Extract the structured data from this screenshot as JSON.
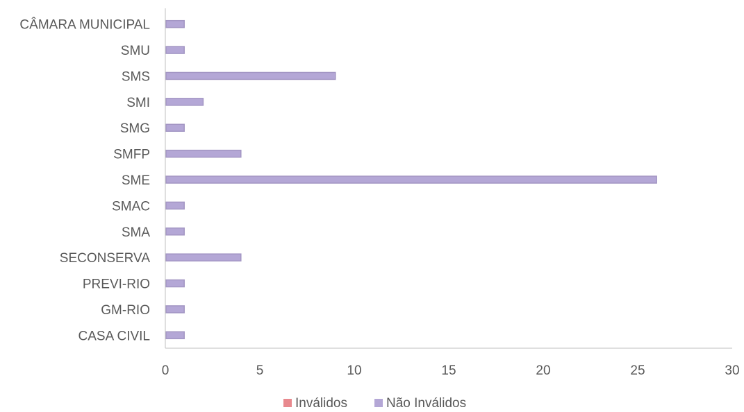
{
  "chart_data": {
    "type": "bar",
    "orientation": "horizontal",
    "categories": [
      "CASA CIVIL",
      "GM-RIO",
      "PREVI-RIO",
      "SECONSERVA",
      "SMA",
      "SMAC",
      "SME",
      "SMFP",
      "SMG",
      "SMI",
      "SMS",
      "SMU",
      "CÂMARA MUNICIPAL"
    ],
    "series": [
      {
        "name": "Inválidos",
        "color": "#e8898e",
        "values": [
          0,
          0,
          0,
          0,
          0,
          0,
          0,
          0,
          0,
          0,
          0,
          0,
          0
        ]
      },
      {
        "name": "Não Inválidos",
        "color": "#b4a7d6",
        "values": [
          1,
          1,
          1,
          4,
          1,
          1,
          26,
          4,
          1,
          2,
          9,
          1,
          1
        ]
      }
    ],
    "xlim": [
      0,
      30
    ],
    "xticks": [
      "0",
      "5",
      "10",
      "15",
      "20",
      "25",
      "30"
    ],
    "grid": false,
    "legend_position": "bottom"
  }
}
